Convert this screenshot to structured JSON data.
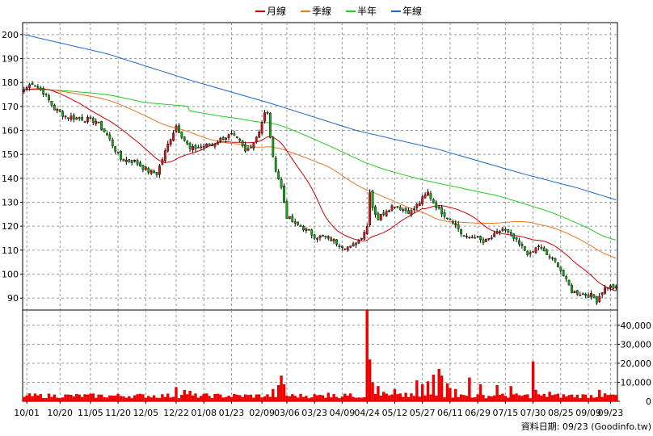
{
  "chart_data": {
    "type": "candlestick",
    "legend": {
      "placement": "top-center",
      "items": [
        {
          "name": "月線",
          "color": "#cc0000"
        },
        {
          "name": "季線",
          "color": "#e87722"
        },
        {
          "name": "半年",
          "color": "#22cc22"
        },
        {
          "name": "年線",
          "color": "#1a66cc"
        }
      ]
    },
    "price_axis": {
      "min": 85,
      "max": 205,
      "ticks": [
        90,
        100,
        110,
        120,
        130,
        140,
        150,
        160,
        170,
        180,
        190,
        200
      ]
    },
    "volume_axis": {
      "min": 0,
      "max": 48000,
      "ticks": [
        0,
        10000,
        20000,
        30000,
        40000
      ],
      "tick_labels": [
        "0",
        "10,000",
        "20,000",
        "30,000",
        "40,000"
      ]
    },
    "x_tick_labels": [
      "10/01",
      "10/20",
      "11/05",
      "11/20",
      "12/05",
      "12/22",
      "01/08",
      "01/23",
      "02/09",
      "03/06",
      "03/23",
      "04/09",
      "04/24",
      "05/12",
      "05/27",
      "06/11",
      "06/29",
      "07/15",
      "07/30",
      "08/25",
      "09/09",
      "09/23"
    ],
    "x_tick_index": [
      1,
      13,
      24,
      34,
      44,
      55,
      65,
      75,
      86,
      95,
      105,
      115,
      124,
      134,
      144,
      154,
      164,
      174,
      184,
      194,
      204,
      212
    ],
    "num_points": 215,
    "colors": {
      "up": "#dd1111",
      "down": "#11aa11",
      "volume": "#ee0000",
      "grid": "#999999",
      "axis": "#000000"
    },
    "close_anchors": [
      [
        0,
        177
      ],
      [
        3,
        180
      ],
      [
        7,
        176
      ],
      [
        11,
        169
      ],
      [
        15,
        166
      ],
      [
        20,
        165
      ],
      [
        26,
        164
      ],
      [
        30,
        158
      ],
      [
        35,
        148
      ],
      [
        40,
        147
      ],
      [
        45,
        143
      ],
      [
        48,
        142
      ],
      [
        50,
        148
      ],
      [
        53,
        157
      ],
      [
        55,
        162
      ],
      [
        58,
        156
      ],
      [
        60,
        152
      ],
      [
        63,
        153
      ],
      [
        68,
        154
      ],
      [
        72,
        157
      ],
      [
        75,
        158
      ],
      [
        78,
        155
      ],
      [
        80,
        151
      ],
      [
        83,
        155
      ],
      [
        85,
        160
      ],
      [
        87,
        167
      ],
      [
        88,
        167
      ],
      [
        90,
        148
      ],
      [
        91,
        144
      ],
      [
        93,
        136
      ],
      [
        95,
        124
      ],
      [
        98,
        121
      ],
      [
        100,
        120
      ],
      [
        105,
        116
      ],
      [
        110,
        115
      ],
      [
        115,
        112
      ],
      [
        118,
        111
      ],
      [
        121,
        114
      ],
      [
        124,
        120
      ],
      [
        125,
        135
      ],
      [
        126,
        128
      ],
      [
        128,
        123
      ],
      [
        131,
        127
      ],
      [
        134,
        129
      ],
      [
        137,
        127
      ],
      [
        140,
        126
      ],
      [
        143,
        130
      ],
      [
        146,
        134
      ],
      [
        148,
        130
      ],
      [
        150,
        127
      ],
      [
        153,
        124
      ],
      [
        156,
        121
      ],
      [
        158,
        117
      ],
      [
        160,
        115
      ],
      [
        163,
        116
      ],
      [
        166,
        113
      ],
      [
        170,
        116
      ],
      [
        173,
        119
      ],
      [
        176,
        116
      ],
      [
        180,
        111
      ],
      [
        183,
        108
      ],
      [
        186,
        112
      ],
      [
        188,
        109
      ],
      [
        190,
        107
      ],
      [
        193,
        104
      ],
      [
        196,
        97
      ],
      [
        198,
        93
      ],
      [
        201,
        92
      ],
      [
        205,
        91
      ],
      [
        207,
        89
      ],
      [
        209,
        93
      ],
      [
        211,
        95
      ],
      [
        214,
        94
      ]
    ],
    "ma_year_anchors": [
      [
        0,
        200
      ],
      [
        30,
        192
      ],
      [
        60,
        181
      ],
      [
        90,
        171
      ],
      [
        120,
        160
      ],
      [
        150,
        152
      ],
      [
        180,
        142
      ],
      [
        200,
        136
      ],
      [
        214,
        131
      ]
    ],
    "volume_base": 1600,
    "volume_spikes": [
      [
        124,
        48000
      ],
      [
        125,
        22000
      ],
      [
        126,
        10000
      ],
      [
        128,
        8000
      ],
      [
        90,
        6500
      ],
      [
        92,
        8500
      ],
      [
        93,
        13500
      ],
      [
        94,
        9000
      ],
      [
        55,
        7500
      ],
      [
        58,
        6000
      ],
      [
        60,
        5500
      ],
      [
        142,
        11000
      ],
      [
        144,
        9000
      ],
      [
        146,
        10500
      ],
      [
        148,
        14000
      ],
      [
        150,
        17000
      ],
      [
        151,
        13500
      ],
      [
        153,
        9500
      ],
      [
        154,
        7000
      ],
      [
        156,
        6500
      ],
      [
        161,
        12500
      ],
      [
        165,
        9000
      ],
      [
        171,
        8500
      ],
      [
        176,
        8000
      ],
      [
        184,
        21000
      ],
      [
        185,
        6000
      ],
      [
        190,
        5000
      ],
      [
        110,
        4500
      ],
      [
        116,
        4000
      ],
      [
        130,
        5000
      ],
      [
        134,
        6500
      ],
      [
        138,
        4500
      ],
      [
        208,
        6000
      ],
      [
        212,
        3500
      ]
    ],
    "credit": "資料日期: 09/23 (Goodinfo.tw)"
  }
}
